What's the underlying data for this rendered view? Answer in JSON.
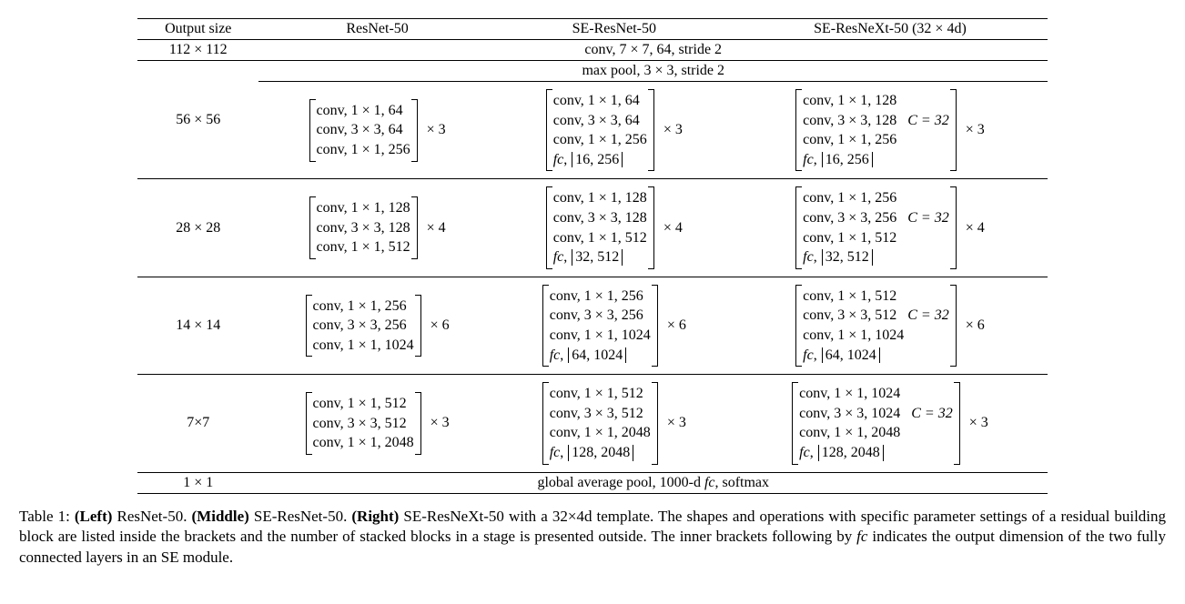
{
  "columns": [
    "Output size",
    "ResNet-50",
    "SE-ResNet-50",
    "SE-ResNeXt-50 (32 × 4d)"
  ],
  "row_112": {
    "size": "112 × 112",
    "shared": "conv, 7 × 7, 64, stride 2"
  },
  "row_56_pool": "max pool, 3 × 3, stride 2",
  "stages": [
    {
      "size": "56 × 56",
      "resnet": {
        "lines": [
          "conv, 1 × 1, 64",
          "conv, 3 × 3, 64",
          "conv, 1 × 1, 256"
        ],
        "mult": "× 3"
      },
      "se": {
        "lines": [
          "conv, 1 × 1, 64",
          "conv, 3 × 3, 64",
          "conv, 1 × 1, 256"
        ],
        "fc": "16, 256",
        "mult": "× 3"
      },
      "sex": {
        "lines": [
          "conv, 1 × 1, 128",
          "conv, 3 × 3, 128",
          "conv, 1 × 1, 256"
        ],
        "fc": "16, 256",
        "annot": "C = 32",
        "mult": "× 3"
      }
    },
    {
      "size": "28 × 28",
      "resnet": {
        "lines": [
          "conv, 1 × 1, 128",
          "conv, 3 × 3, 128",
          "conv, 1 × 1, 512"
        ],
        "mult": "× 4"
      },
      "se": {
        "lines": [
          "conv, 1 × 1, 128",
          "conv, 3 × 3, 128",
          "conv, 1 × 1, 512"
        ],
        "fc": "32, 512",
        "mult": "× 4"
      },
      "sex": {
        "lines": [
          "conv, 1 × 1, 256",
          "conv, 3 × 3, 256",
          "conv, 1 × 1, 512"
        ],
        "fc": "32, 512",
        "annot": "C = 32",
        "mult": "× 4"
      }
    },
    {
      "size": "14 × 14",
      "resnet": {
        "lines": [
          "conv, 1 × 1, 256",
          "conv, 3 × 3, 256",
          "conv, 1 × 1, 1024"
        ],
        "mult": "× 6"
      },
      "se": {
        "lines": [
          "conv, 1 × 1, 256",
          "conv, 3 × 3, 256",
          "conv, 1 × 1, 1024"
        ],
        "fc": "64, 1024",
        "mult": "× 6"
      },
      "sex": {
        "lines": [
          "conv, 1 × 1, 512",
          "conv, 3 × 3, 512",
          "conv, 1 × 1, 1024"
        ],
        "fc": "64, 1024",
        "annot": "C = 32",
        "mult": "× 6"
      }
    },
    {
      "size": "7×7",
      "resnet": {
        "lines": [
          "conv, 1 × 1, 512",
          "conv, 3 × 3, 512",
          "conv, 1 × 1, 2048"
        ],
        "mult": "× 3"
      },
      "se": {
        "lines": [
          "conv, 1 × 1, 512",
          "conv, 3 × 3, 512",
          "conv, 1 × 1, 2048"
        ],
        "fc": "128, 2048",
        "mult": "× 3"
      },
      "sex": {
        "lines": [
          "conv, 1 × 1, 1024",
          "conv, 3 × 3, 1024",
          "conv, 1 × 1, 2048"
        ],
        "fc": "128, 2048",
        "annot": "C = 32",
        "mult": "× 3"
      }
    }
  ],
  "row_1": {
    "size": "1 × 1",
    "shared_pre": "global average pool, 1000-d ",
    "shared_fc": "fc",
    "shared_post": ", softmax"
  },
  "caption": {
    "label": "Table 1:",
    "left_b": "(Left)",
    "left_t": " ResNet-50. ",
    "mid_b": "(Middle)",
    "mid_t": " SE-ResNet-50. ",
    "right_b": "(Right)",
    "rest1": " SE-ResNeXt-50 with a 32×4d template. The shapes and operations with specific parameter settings of a residual building block are listed inside the brackets and the number of stacked blocks in a stage is presented outside. The inner brackets following by ",
    "fc": "fc",
    "rest2": " indicates the output dimension of the two fully connected layers in an SE module."
  },
  "fc_label": "fc"
}
